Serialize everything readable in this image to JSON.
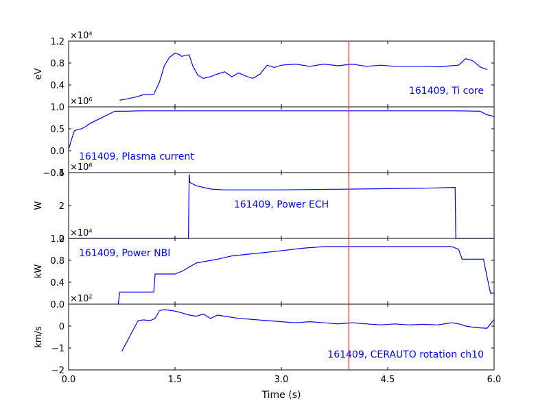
{
  "figure": {
    "xlabel": "Time (s)",
    "x_ticks": [
      "0.0",
      "1.5",
      "3.0",
      "4.5",
      "6.0"
    ],
    "xlim": [
      0,
      6
    ],
    "marker_x": 3.95,
    "marker_color": "#ff0000",
    "line_color": "#0000ff"
  },
  "chart_data": [
    {
      "type": "line",
      "label": "161409, Ti core",
      "ylabel": "eV",
      "multiplier": "×10⁴",
      "ylim": [
        0,
        1.2
      ],
      "y_ticks": [
        "0.4",
        "0.8",
        "1.2"
      ],
      "x": [
        0.72,
        0.8,
        0.95,
        1.05,
        1.12,
        1.2,
        1.28,
        1.35,
        1.42,
        1.5,
        1.55,
        1.6,
        1.64,
        1.7,
        1.75,
        1.82,
        1.9,
        2.0,
        2.1,
        2.2,
        2.3,
        2.4,
        2.5,
        2.6,
        2.7,
        2.8,
        2.9,
        3.0,
        3.2,
        3.4,
        3.6,
        3.8,
        4.0,
        4.2,
        4.4,
        4.6,
        4.8,
        5.0,
        5.2,
        5.4,
        5.5,
        5.6,
        5.7,
        5.8,
        5.9
      ],
      "values": [
        0.12,
        0.14,
        0.18,
        0.22,
        0.22,
        0.23,
        0.45,
        0.75,
        0.9,
        0.98,
        0.96,
        0.92,
        0.94,
        0.95,
        0.75,
        0.58,
        0.52,
        0.55,
        0.6,
        0.64,
        0.55,
        0.62,
        0.56,
        0.52,
        0.6,
        0.76,
        0.72,
        0.76,
        0.78,
        0.74,
        0.78,
        0.75,
        0.78,
        0.74,
        0.76,
        0.74,
        0.74,
        0.74,
        0.73,
        0.75,
        0.76,
        0.88,
        0.84,
        0.73,
        0.68
      ]
    },
    {
      "type": "line",
      "label": "161409, Plasma current",
      "ylabel": "",
      "multiplier": "×10⁶",
      "ylim": [
        -0.5,
        1.0
      ],
      "y_ticks": [
        "−0.5",
        "0.0",
        "0.5",
        "1.0"
      ],
      "x": [
        0.0,
        0.04,
        0.08,
        0.12,
        0.18,
        0.24,
        0.3,
        0.4,
        0.5,
        0.6,
        0.65,
        0.7,
        0.8,
        1.0,
        2.0,
        3.0,
        4.0,
        5.0,
        5.5,
        5.8,
        5.9,
        6.0
      ],
      "values": [
        0.03,
        0.25,
        0.45,
        0.48,
        0.5,
        0.55,
        0.62,
        0.7,
        0.78,
        0.86,
        0.9,
        0.9,
        0.9,
        0.91,
        0.91,
        0.91,
        0.91,
        0.91,
        0.91,
        0.9,
        0.82,
        0.78
      ]
    },
    {
      "type": "line",
      "label": "161409, Power ECH",
      "ylabel": "W",
      "multiplier": "×10⁶",
      "ylim": [
        0,
        4
      ],
      "y_ticks": [
        "0",
        "2",
        "4"
      ],
      "x": [
        0.0,
        1.69,
        1.7,
        1.71,
        1.8,
        1.9,
        2.0,
        2.2,
        3.0,
        4.0,
        5.0,
        5.45,
        5.46,
        6.0
      ],
      "values": [
        0,
        0,
        3.9,
        3.4,
        3.2,
        3.1,
        3.0,
        2.95,
        2.95,
        3.0,
        3.05,
        3.1,
        0,
        0
      ]
    },
    {
      "type": "line",
      "label": "161409, Power NBI",
      "ylabel": "kW",
      "multiplier": "×10⁴",
      "ylim": [
        0,
        1.2
      ],
      "y_ticks": [
        "0.0",
        "0.4",
        "0.8",
        "1.2"
      ],
      "x": [
        0.7,
        0.72,
        1.2,
        1.22,
        1.5,
        1.6,
        1.8,
        2.1,
        2.3,
        2.6,
        2.9,
        3.3,
        3.6,
        4.0,
        4.5,
        5.0,
        5.4,
        5.5,
        5.55,
        5.85,
        5.9,
        5.95,
        6.0
      ],
      "values": [
        0,
        0.22,
        0.22,
        0.55,
        0.55,
        0.6,
        0.75,
        0.82,
        0.88,
        0.92,
        0.96,
        1.02,
        1.05,
        1.05,
        1.05,
        1.05,
        1.05,
        1.0,
        0.82,
        0.82,
        0.5,
        0.2,
        0.2
      ]
    },
    {
      "type": "line",
      "label": "161409, CERAUTO rotation ch10",
      "ylabel": "km/s",
      "multiplier": "×10²",
      "ylim": [
        -2,
        1
      ],
      "y_ticks": [
        "−2",
        "−1",
        "0"
      ],
      "x": [
        0.75,
        0.98,
        1.05,
        1.15,
        1.22,
        1.28,
        1.35,
        1.42,
        1.5,
        1.6,
        1.7,
        1.8,
        1.9,
        2.0,
        2.1,
        2.2,
        2.4,
        2.6,
        2.8,
        3.0,
        3.2,
        3.4,
        3.6,
        3.8,
        4.0,
        4.2,
        4.4,
        4.6,
        4.8,
        5.0,
        5.2,
        5.4,
        5.5,
        5.6,
        5.7,
        5.8,
        5.9,
        6.0
      ],
      "values": [
        -1.15,
        0.25,
        0.28,
        0.25,
        0.35,
        0.7,
        0.75,
        0.72,
        0.68,
        0.6,
        0.5,
        0.45,
        0.55,
        0.35,
        0.5,
        0.45,
        0.35,
        0.3,
        0.25,
        0.2,
        0.15,
        0.2,
        0.15,
        0.1,
        0.15,
        0.1,
        0.05,
        0.1,
        0.05,
        0.08,
        0.05,
        0.15,
        0.1,
        0.0,
        -0.05,
        -0.08,
        -0.1,
        0.3
      ]
    }
  ]
}
